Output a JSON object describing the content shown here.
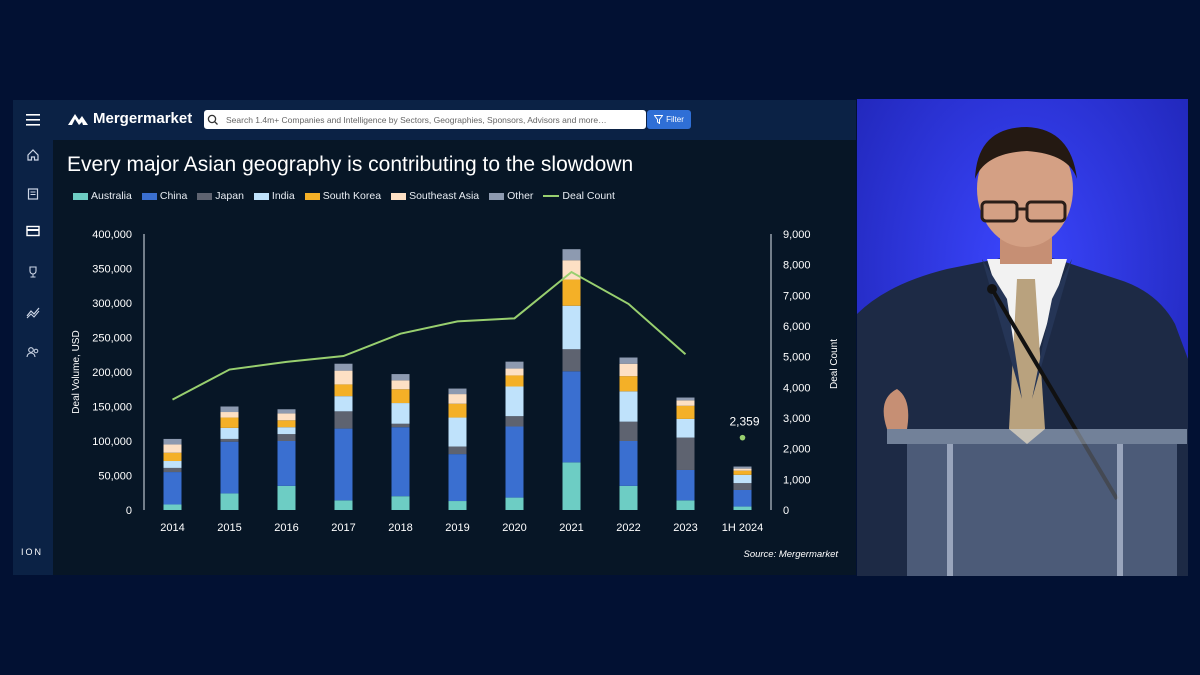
{
  "app": {
    "name": "Mergermarket"
  },
  "search": {
    "placeholder": "Search 1.4m+ Companies and Intelligence by Sectors, Geographies, Sponsors, Advisors and more…"
  },
  "filter_label": "Filter",
  "slide": {
    "title": "Every major Asian geography is contributing to the slowdown",
    "source": "Source: Mergermarket"
  },
  "brand_footer": "ION",
  "colors": {
    "Australia": "#6dcdc4",
    "China": "#3a6fd0",
    "Japan": "#5e6370",
    "India": "#bfe2fb",
    "South Korea": "#f4b027",
    "Southeast Asia": "#fde0c4",
    "Other": "#8d9ab0",
    "Deal Count": "#98cf6f"
  },
  "chart_data": {
    "type": "bar",
    "stacked": true,
    "title": "Every major Asian geography is contributing to the slowdown",
    "categories": [
      "2014",
      "2015",
      "2016",
      "2017",
      "2018",
      "2019",
      "2020",
      "2021",
      "2022",
      "2023",
      "1H 2024"
    ],
    "series": [
      {
        "name": "Australia",
        "values": [
          8000,
          24000,
          35000,
          14000,
          20000,
          13000,
          18000,
          69000,
          35000,
          14000,
          5000
        ]
      },
      {
        "name": "China",
        "values": [
          47000,
          75000,
          65000,
          104000,
          100000,
          68000,
          103000,
          132000,
          65000,
          44000,
          24000
        ]
      },
      {
        "name": "Japan",
        "values": [
          6000,
          4000,
          10000,
          25000,
          5000,
          11000,
          15000,
          32000,
          28000,
          47000,
          10000
        ]
      },
      {
        "name": "India",
        "values": [
          10000,
          16000,
          10000,
          22000,
          30000,
          42000,
          43000,
          63000,
          44000,
          27000,
          12000
        ]
      },
      {
        "name": "South Korea",
        "values": [
          12000,
          15000,
          10000,
          17000,
          20000,
          20000,
          16000,
          38000,
          22000,
          19000,
          6000
        ]
      },
      {
        "name": "Southeast Asia",
        "values": [
          12000,
          8000,
          10000,
          20000,
          13000,
          14000,
          10000,
          28000,
          18000,
          8000,
          3000
        ]
      },
      {
        "name": "Other",
        "values": [
          8000,
          8000,
          6000,
          10000,
          9000,
          8000,
          10000,
          16000,
          9000,
          4000,
          3000
        ]
      }
    ],
    "line": {
      "name": "Deal Count",
      "values": [
        3600,
        4580,
        4830,
        5020,
        5750,
        6150,
        6250,
        7760,
        6720,
        5080,
        2359
      ],
      "label": "2,359"
    },
    "ylabel": "Deal Volume, USD",
    "y2label": "Deal Count",
    "ylim": [
      0,
      400000
    ],
    "y2lim": [
      0,
      9000
    ],
    "yticks": [
      "0",
      "50,000",
      "100,000",
      "150,000",
      "200,000",
      "250,000",
      "300,000",
      "350,000",
      "400,000"
    ],
    "y2ticks": [
      "0",
      "1,000",
      "2,000",
      "3,000",
      "4,000",
      "5,000",
      "6,000",
      "7,000",
      "8,000",
      "9,000"
    ],
    "legend": [
      "Australia",
      "China",
      "Japan",
      "India",
      "South Korea",
      "Southeast Asia",
      "Other",
      "Deal Count"
    ],
    "grid": false
  }
}
